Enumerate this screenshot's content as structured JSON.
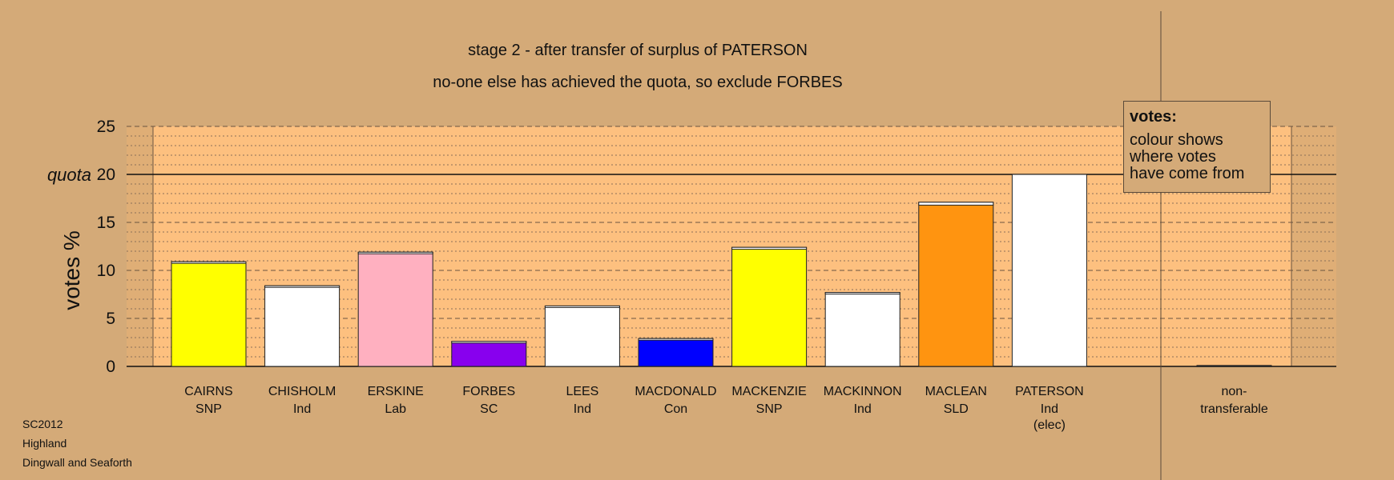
{
  "header": {
    "title": "stage 2 - after transfer of surplus of PATERSON",
    "subtitle": "no-one else has achieved the quota, so exclude FORBES"
  },
  "footer": {
    "line1": "SC2012",
    "line2": "Highland",
    "line3": "Dingwall and Seaforth"
  },
  "legend": {
    "heading": "votes:",
    "body": "colour shows\nwhere votes\nhave come from"
  },
  "chart_data": {
    "type": "bar",
    "ylabel": "votes %",
    "quota_label": "quota",
    "quota": 20,
    "ylim": [
      0,
      25
    ],
    "yticks": [
      0,
      5,
      10,
      15,
      20,
      25
    ],
    "grid": "dotted every 1, dashed every 5",
    "legend_position": "top-right",
    "categories": [
      {
        "name": "CAIRNS",
        "party": "SNP",
        "value": 10.9,
        "transfer": 0.1,
        "color": "#ffff00"
      },
      {
        "name": "CHISHOLM",
        "party": "Ind",
        "value": 8.4,
        "transfer": 0.15,
        "color": "#ffffff"
      },
      {
        "name": "ERSKINE",
        "party": "Lab",
        "value": 11.9,
        "transfer": 0.15,
        "color": "#ffb0c0"
      },
      {
        "name": "FORBES",
        "party": "SC",
        "value": 2.6,
        "transfer": 0.05,
        "color": "#8800ee"
      },
      {
        "name": "LEES",
        "party": "Ind",
        "value": 6.3,
        "transfer": 0.15,
        "color": "#ffffff"
      },
      {
        "name": "MACDONALD",
        "party": "Con",
        "value": 2.9,
        "transfer": 0.1,
        "color": "#0000ff"
      },
      {
        "name": "MACKENZIE",
        "party": "SNP",
        "value": 12.4,
        "transfer": 0.2,
        "color": "#ffff00"
      },
      {
        "name": "MACKINNON",
        "party": "Ind",
        "value": 7.7,
        "transfer": 0.15,
        "color": "#ffffff"
      },
      {
        "name": "MACLEAN",
        "party": "SLD",
        "value": 17.1,
        "transfer": 0.3,
        "color": "#ff9410"
      },
      {
        "name": "PATERSON",
        "party": "Ind",
        "note": "(elec)",
        "value": 20.0,
        "transfer": 0,
        "color": "#ffffff"
      }
    ],
    "nontransferable": {
      "label_line1": "non-",
      "label_line2": "transferable",
      "value": 0.1
    }
  },
  "colors": {
    "background": "#d4aa78",
    "plot_area": "#fdc07f",
    "axis": "#111111"
  }
}
